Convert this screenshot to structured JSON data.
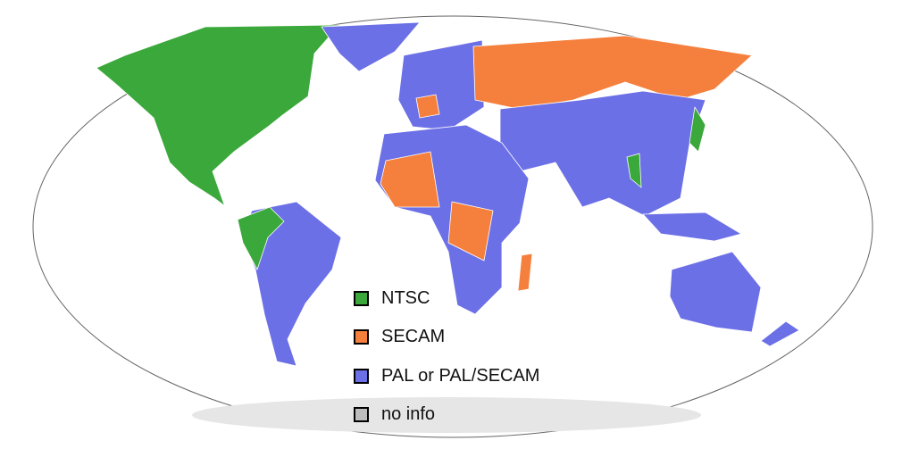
{
  "map": {
    "colors": {
      "ntsc": "#3aa83a",
      "secam": "#f5803e",
      "pal": "#6c70e6",
      "no_info": "#bdbdbd",
      "antarctica": "#e6e6e6",
      "ocean": "#ffffff",
      "border": "#ffffff",
      "outline": "#555555"
    }
  },
  "legend": {
    "items": [
      {
        "label": "NTSC",
        "color": "#3aa83a"
      },
      {
        "label": "SECAM",
        "color": "#f5803e"
      },
      {
        "label": "PAL or PAL/SECAM",
        "color": "#6c70e6"
      },
      {
        "label": "no info",
        "color": "#bdbdbd"
      }
    ]
  }
}
